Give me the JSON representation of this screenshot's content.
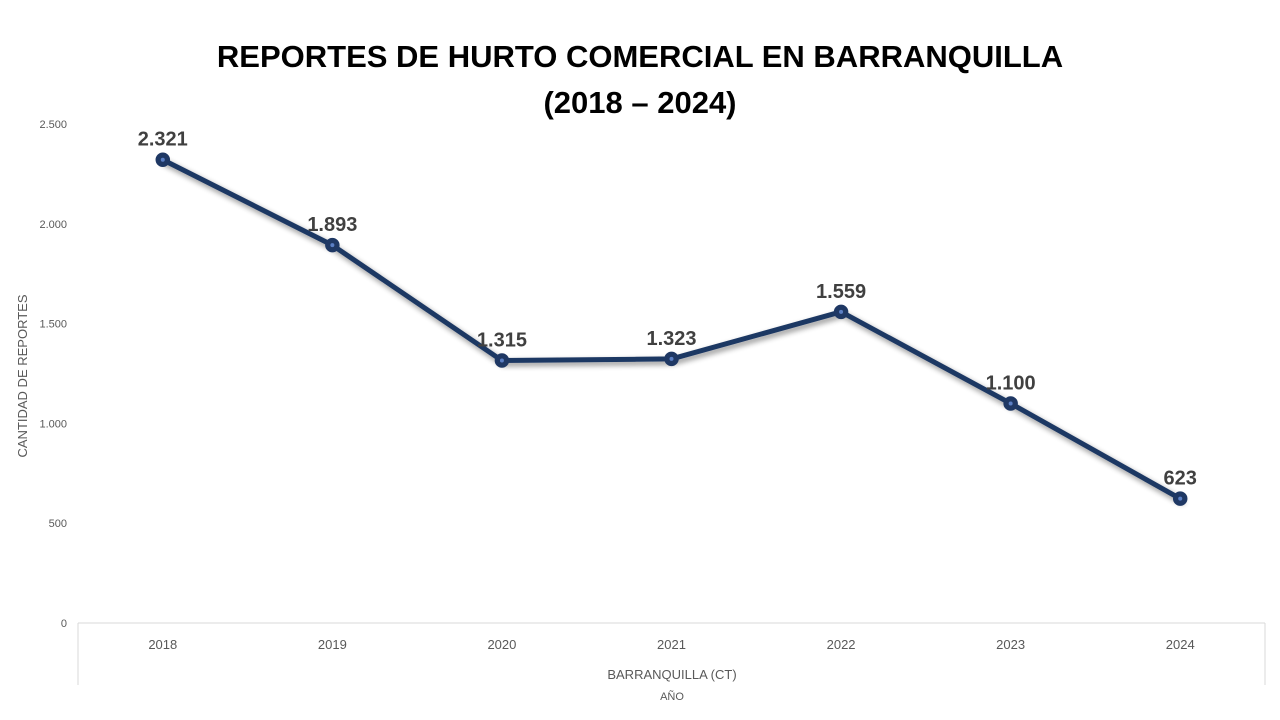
{
  "chart_data": {
    "type": "line",
    "title_line1": "REPORTES DE HURTO COMERCIAL EN BARRANQUILLA",
    "title_line2": "(2018 – 2024)",
    "ylabel": "CANTIDAD DE REPORTES",
    "xlabel": "AÑO",
    "x_group_label": "BARRANQUILLA (CT)",
    "categories": [
      "2018",
      "2019",
      "2020",
      "2021",
      "2022",
      "2023",
      "2024"
    ],
    "series": [
      {
        "values": [
          2321,
          1893,
          1315,
          1323,
          1559,
          1100,
          623
        ],
        "labels": [
          "2.321",
          "1.893",
          "1.315",
          "1.323",
          "1.559",
          "1.100",
          "623"
        ],
        "color": "#1f3864"
      }
    ],
    "ylim": [
      0,
      2500
    ],
    "yticks": [
      0,
      500,
      1000,
      1500,
      2000,
      2500
    ],
    "ytick_labels": [
      "0",
      "500",
      "1.000",
      "1.500",
      "2.000",
      "2.500"
    ],
    "grid": false,
    "legend": "none"
  }
}
